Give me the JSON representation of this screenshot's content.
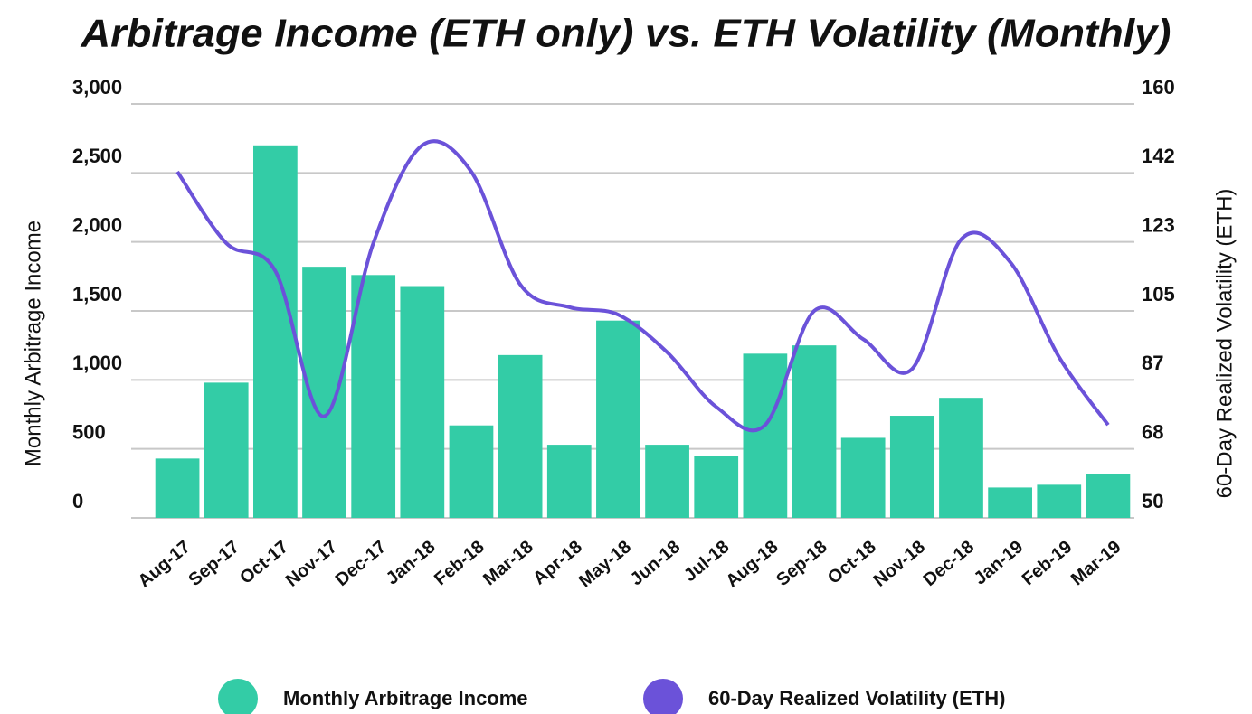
{
  "chart_data": {
    "type": "combo",
    "title": "Arbitrage Income (ETH only) vs. ETH Volatility (Monthly)",
    "ylabel": "Monthly Arbitrage Income",
    "y2label": "60-Day Realized Volatility (ETH)",
    "categories": [
      "Aug-17",
      "Sep-17",
      "Oct-17",
      "Nov-17",
      "Dec-17",
      "Jan-18",
      "Feb-18",
      "Mar-18",
      "Apr-18",
      "May-18",
      "Jun-18",
      "Jul-18",
      "Aug-18",
      "Sep-18",
      "Oct-18",
      "Nov-18",
      "Dec-18",
      "Jan-19",
      "Feb-19",
      "Mar-19"
    ],
    "series": [
      {
        "name": "Monthly Arbitrage Income",
        "type": "bar",
        "color": "#33cca6",
        "values": [
          430,
          980,
          2700,
          1820,
          1760,
          1680,
          670,
          1180,
          530,
          1430,
          530,
          450,
          1190,
          1250,
          580,
          740,
          870,
          220,
          240,
          320
        ]
      },
      {
        "name": "60-Day Realized Volatility (ETH)",
        "type": "line",
        "axis": "y2",
        "color": "#6b52d9",
        "values": [
          142,
          123,
          115.6,
          77,
          123,
          149,
          142,
          112,
          106,
          104,
          94,
          79.5,
          74.7,
          105,
          97.5,
          89.6,
          124,
          118,
          92.7,
          74.7
        ]
      }
    ],
    "ylim": [
      0,
      3000
    ],
    "yticks": [
      0,
      500,
      {
        "value": 1000,
        "label": "1,000"
      },
      {
        "value": 1500,
        "label": "1,500"
      },
      {
        "value": 2000,
        "label": "2,000"
      },
      {
        "value": 2500,
        "label": "2,500"
      },
      {
        "value": 3000,
        "label": "3,000"
      }
    ],
    "y2lim": [
      50,
      160
    ],
    "y2ticks": [
      50,
      {
        "value": 68.33,
        "label": "68"
      },
      {
        "value": 86.67,
        "label": "87"
      },
      105,
      {
        "value": 123.33,
        "label": "123"
      },
      {
        "value": 141.67,
        "label": "142"
      },
      160
    ],
    "grid": true,
    "legend": "bottom"
  }
}
